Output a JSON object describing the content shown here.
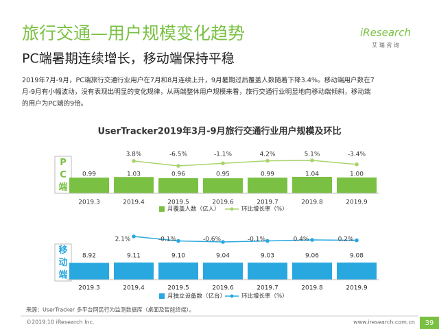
{
  "slide": {
    "title": "旅行交通—用户规模变化趋势",
    "subtitle": "PC端暑期连续增长，移动端保持平稳",
    "body": [
      "2019年7月-9月，PC端旅行交通行业用户在7月和8月连续上升，9月暑期过后覆盖人数随着下降3.4%。移动端用户数在7",
      "月-9月有小幅波动，没有表现出明显的变化规律，从两端整体用户规模来看，旅行交通行业明显地向移动端倾斜，移动端",
      "的用户为PC端的9倍。"
    ],
    "logo": "iResearch",
    "logo_sub": "艾 瑞 咨 询",
    "chart_title": "UserTracker2019年3月-9月旅行交通行业用户规模及环比",
    "source": "来源：UserTracker 多平台网民行为监测数据库（桌面及智能终端）。",
    "copyright": "©2019.10 iResearch Inc.",
    "website": "www.iresearch.com.cn",
    "page": "39"
  },
  "chart_data": [
    {
      "type": "bar",
      "label": "PC端",
      "categories": [
        "2019.3",
        "2019.4",
        "2019.5",
        "2019.6",
        "2019.7",
        "2019.8",
        "2019.9"
      ],
      "series": [
        {
          "name": "月覆盖人数（亿人）",
          "color": "#7ac143",
          "values": [
            0.99,
            1.03,
            0.96,
            0.95,
            0.99,
            1.04,
            1.0
          ],
          "value_labels": [
            "0.99",
            "1.03",
            "0.96",
            "0.95",
            "0.99",
            "1.04",
            "1.00"
          ]
        },
        {
          "name": "环比增长率（%）",
          "type": "line",
          "color": "#a8d46c",
          "values": [
            null,
            3.8,
            -6.5,
            -1.1,
            4.2,
            5.1,
            -3.4
          ],
          "value_labels": [
            null,
            "3.8%",
            "-6.5%",
            "-1.1%",
            "4.2%",
            "5.1%",
            "-3.4%"
          ]
        }
      ]
    },
    {
      "type": "bar",
      "label": "移动端",
      "categories": [
        "2019.3",
        "2019.4",
        "2019.5",
        "2019.6",
        "2019.7",
        "2019.8",
        "2019.9"
      ],
      "series": [
        {
          "name": "月独立设备数（亿台）",
          "color": "#29a8e0",
          "values": [
            8.92,
            9.11,
            9.1,
            9.04,
            9.03,
            9.06,
            9.08
          ],
          "value_labels": [
            "8.92",
            "9.11",
            "9.10",
            "9.04",
            "9.03",
            "9.06",
            "9.08"
          ]
        },
        {
          "name": "环比增长率（%）",
          "type": "line",
          "color": "#29a8e0",
          "values": [
            null,
            2.1,
            -0.1,
            -0.6,
            -0.1,
            0.4,
            0.2
          ],
          "value_labels": [
            null,
            "2.1%",
            "-0.1%",
            "-0.6%",
            "-0.1%",
            "0.4%",
            "0.2%"
          ]
        }
      ]
    }
  ]
}
